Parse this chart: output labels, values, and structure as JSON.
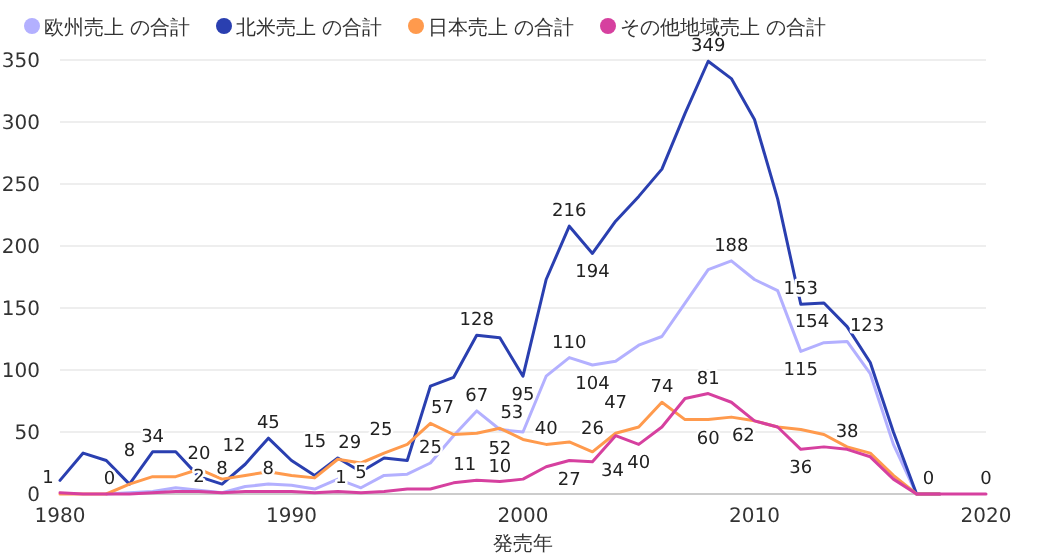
{
  "chart_data": {
    "type": "line",
    "xlabel": "発売年",
    "x": [
      1980,
      1981,
      1982,
      1983,
      1984,
      1985,
      1986,
      1987,
      1988,
      1989,
      1990,
      1991,
      1992,
      1993,
      1994,
      1995,
      1996,
      1997,
      1998,
      1999,
      2000,
      2001,
      2002,
      2003,
      2004,
      2005,
      2006,
      2007,
      2008,
      2009,
      2010,
      2011,
      2012,
      2013,
      2014,
      2015,
      2016,
      2017,
      2018,
      2019,
      2020
    ],
    "xlim": [
      1980,
      2020
    ],
    "xticks": [
      1980,
      1990,
      2000,
      2010,
      2020
    ],
    "ylim": [
      0,
      350
    ],
    "yticks": [
      0,
      50,
      100,
      150,
      200,
      250,
      300,
      350
    ],
    "grid": "y",
    "legend": "top left",
    "marker": "none",
    "line_style": "solid",
    "series": [
      {
        "name": "欧州売上 の合計",
        "color": "#b3b0ff",
        "values": [
          null,
          null,
          0,
          1,
          2,
          5,
          3,
          1,
          6,
          8,
          7,
          4,
          12,
          5,
          15,
          16,
          25,
          47,
          67,
          52,
          50,
          95,
          110,
          104,
          107,
          120,
          127,
          154,
          181,
          188,
          173,
          164,
          115,
          122,
          123,
          97,
          40,
          0,
          0,
          null,
          null
        ],
        "value_labels": [
          null,
          null,
          null,
          null,
          null,
          null,
          null,
          null,
          null,
          "8",
          null,
          null,
          null,
          "5",
          null,
          null,
          "25",
          null,
          "67",
          "52",
          null,
          null,
          "110",
          "104",
          null,
          null,
          null,
          null,
          null,
          "188",
          null,
          null,
          "115",
          null,
          "123",
          null,
          null,
          null,
          null,
          null,
          null
        ]
      },
      {
        "name": "北米売上 の合計",
        "color": "#2a3fb0",
        "values": [
          11,
          33,
          27,
          8,
          34,
          34,
          14,
          8,
          24,
          45,
          27,
          15,
          29,
          18,
          29,
          27,
          87,
          94,
          128,
          126,
          95,
          173,
          216,
          194,
          220,
          240,
          262,
          307,
          349,
          335,
          302,
          238,
          153,
          154,
          135,
          106,
          50,
          0,
          0,
          null,
          null
        ],
        "value_labels": [
          null,
          null,
          null,
          "8",
          "34",
          null,
          null,
          "8",
          null,
          "45",
          null,
          "15",
          "29",
          null,
          null,
          null,
          null,
          null,
          "128",
          null,
          "95",
          null,
          "216",
          "194",
          null,
          null,
          null,
          null,
          "349",
          null,
          null,
          null,
          "153",
          "154",
          null,
          null,
          null,
          "0",
          null,
          null,
          null
        ]
      },
      {
        "name": "日本売上 の合計",
        "color": "#ff9a4d",
        "values": [
          0,
          0,
          0,
          8,
          14,
          14,
          20,
          12,
          15,
          18,
          15,
          13,
          28,
          25,
          33,
          40,
          57,
          48,
          49,
          53,
          44,
          40,
          42,
          34,
          49,
          54,
          74,
          60,
          60,
          62,
          59,
          54,
          52,
          48,
          38,
          33,
          15,
          0,
          0,
          null,
          null
        ],
        "value_labels": [
          null,
          null,
          null,
          null,
          null,
          null,
          "20",
          "12",
          null,
          null,
          null,
          null,
          null,
          "25",
          null,
          null,
          "57",
          null,
          null,
          "53",
          null,
          "40",
          null,
          "34",
          null,
          null,
          "74",
          null,
          "60",
          "62",
          null,
          null,
          null,
          null,
          "38",
          null,
          null,
          null,
          null,
          null,
          null
        ]
      },
      {
        "name": "その他地域売上 の合計",
        "color": "#d6409f",
        "values": [
          1,
          0,
          0,
          0,
          1,
          2,
          2,
          1,
          2,
          2,
          2,
          1,
          2,
          1,
          2,
          4,
          4,
          9,
          11,
          10,
          12,
          22,
          27,
          26,
          47,
          40,
          54,
          77,
          81,
          74,
          59,
          54,
          36,
          38,
          36,
          30,
          12,
          0,
          0,
          0,
          0
        ],
        "value_labels": [
          "1",
          null,
          null,
          "0",
          null,
          null,
          "2",
          null,
          null,
          null,
          null,
          null,
          null,
          "1",
          null,
          null,
          null,
          null,
          "11",
          "10",
          null,
          null,
          "27",
          "26",
          "47",
          "40",
          null,
          null,
          "81",
          null,
          null,
          null,
          "36",
          null,
          null,
          null,
          null,
          null,
          null,
          null,
          "0"
        ]
      }
    ]
  }
}
